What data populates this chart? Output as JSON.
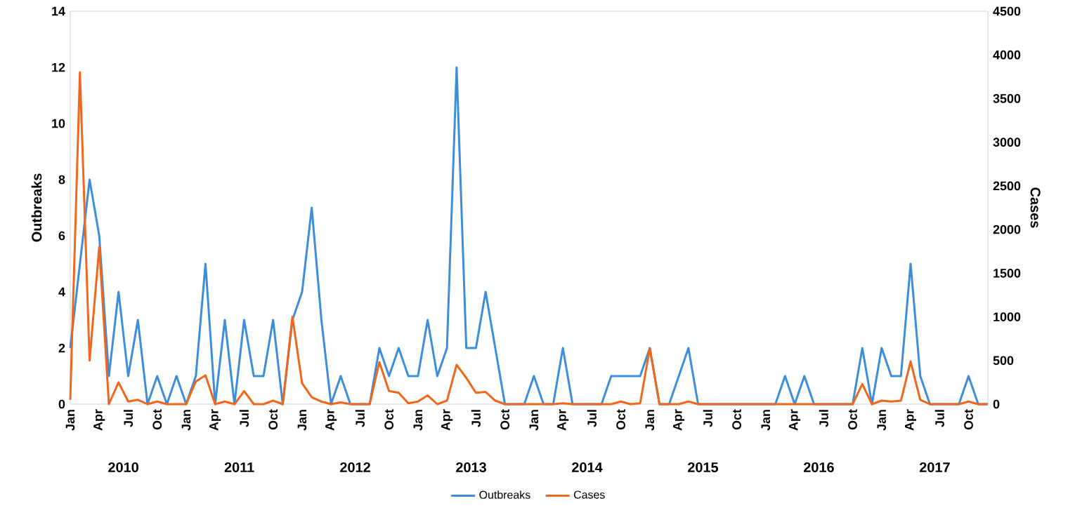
{
  "chart_data": {
    "type": "line",
    "ylabel": "Outbreaks",
    "y2label": "Cases",
    "x": [
      "2010-01",
      "2010-02",
      "2010-03",
      "2010-04",
      "2010-05",
      "2010-06",
      "2010-07",
      "2010-08",
      "2010-09",
      "2010-10",
      "2010-11",
      "2010-12",
      "2011-01",
      "2011-02",
      "2011-03",
      "2011-04",
      "2011-05",
      "2011-06",
      "2011-07",
      "2011-08",
      "2011-09",
      "2011-10",
      "2011-11",
      "2011-12",
      "2012-01",
      "2012-02",
      "2012-03",
      "2012-04",
      "2012-05",
      "2012-06",
      "2012-07",
      "2012-08",
      "2012-09",
      "2012-10",
      "2012-11",
      "2012-12",
      "2013-01",
      "2013-02",
      "2013-03",
      "2013-04",
      "2013-05",
      "2013-06",
      "2013-07",
      "2013-08",
      "2013-09",
      "2013-10",
      "2013-11",
      "2013-12",
      "2014-01",
      "2014-02",
      "2014-03",
      "2014-04",
      "2014-05",
      "2014-06",
      "2014-07",
      "2014-08",
      "2014-09",
      "2014-10",
      "2014-11",
      "2014-12",
      "2015-01",
      "2015-02",
      "2015-03",
      "2015-04",
      "2015-05",
      "2015-06",
      "2015-07",
      "2015-08",
      "2015-09",
      "2015-10",
      "2015-11",
      "2015-12",
      "2016-01",
      "2016-02",
      "2016-03",
      "2016-04",
      "2016-05",
      "2016-06",
      "2016-07",
      "2016-08",
      "2016-09",
      "2016-10",
      "2016-11",
      "2016-12",
      "2017-01",
      "2017-02",
      "2017-03",
      "2017-04",
      "2017-05",
      "2017-06",
      "2017-07",
      "2017-08",
      "2017-09",
      "2017-10",
      "2017-11",
      "2017-12"
    ],
    "xlim": [
      "2010-01",
      "2017-12"
    ],
    "xticks": [
      {
        "value": "2010-01",
        "label": "Jan"
      },
      {
        "value": "2010-04",
        "label": "Apr"
      },
      {
        "value": "2010-07",
        "label": "Jul"
      },
      {
        "value": "2010-10",
        "label": "Oct"
      },
      {
        "value": "2011-01",
        "label": "Jan"
      },
      {
        "value": "2011-04",
        "label": "Apr"
      },
      {
        "value": "2011-07",
        "label": "Jul"
      },
      {
        "value": "2011-10",
        "label": "Oct"
      },
      {
        "value": "2012-01",
        "label": "Jan"
      },
      {
        "value": "2012-04",
        "label": "Apr"
      },
      {
        "value": "2012-07",
        "label": "Jul"
      },
      {
        "value": "2012-10",
        "label": "Oct"
      },
      {
        "value": "2013-01",
        "label": "Jan"
      },
      {
        "value": "2013-04",
        "label": "Apr"
      },
      {
        "value": "2013-07",
        "label": "Jul"
      },
      {
        "value": "2013-10",
        "label": "Oct"
      },
      {
        "value": "2014-01",
        "label": "Jan"
      },
      {
        "value": "2014-04",
        "label": "Apr"
      },
      {
        "value": "2014-07",
        "label": "Jul"
      },
      {
        "value": "2014-10",
        "label": "Oct"
      },
      {
        "value": "2015-01",
        "label": "Jan"
      },
      {
        "value": "2015-04",
        "label": "Apr"
      },
      {
        "value": "2015-07",
        "label": "Jul"
      },
      {
        "value": "2015-10",
        "label": "Oct"
      },
      {
        "value": "2016-01",
        "label": "Jan"
      },
      {
        "value": "2016-04",
        "label": "Apr"
      },
      {
        "value": "2016-07",
        "label": "Jul"
      },
      {
        "value": "2016-10",
        "label": "Oct"
      },
      {
        "value": "2017-01",
        "label": "Jan"
      },
      {
        "value": "2017-04",
        "label": "Apr"
      },
      {
        "value": "2017-07",
        "label": "Jul"
      },
      {
        "value": "2017-10",
        "label": "Oct"
      }
    ],
    "ylim": [
      0,
      14
    ],
    "yticks": [
      0,
      2,
      4,
      6,
      8,
      10,
      12,
      14
    ],
    "y2lim": [
      0,
      4500
    ],
    "y2ticks": [
      0,
      500,
      1000,
      1500,
      2000,
      2500,
      3000,
      3500,
      4000,
      4500
    ],
    "series": [
      {
        "name": "Outbreaks",
        "color": "#3c8dda",
        "values": [
          2,
          5,
          8,
          6,
          1,
          4,
          1,
          3,
          0,
          1,
          0,
          1,
          0,
          1,
          5,
          0,
          3,
          0,
          3,
          1,
          1,
          3,
          0,
          3,
          4,
          7,
          3,
          0,
          1,
          0,
          0,
          0,
          2,
          1,
          2,
          1,
          1,
          3,
          1,
          2,
          12,
          2,
          2,
          4,
          2,
          0,
          0,
          0,
          1,
          0,
          0,
          2,
          0,
          0,
          0,
          0,
          1,
          1,
          1,
          1,
          2,
          0,
          0,
          1,
          2,
          0,
          0,
          0,
          0,
          0,
          0,
          0,
          0,
          0,
          1,
          0,
          1,
          0,
          0,
          0,
          0,
          0,
          2,
          0,
          2,
          1,
          1,
          5,
          1,
          0,
          0,
          0,
          0,
          1,
          0,
          0
        ]
      },
      {
        "name": "Cases",
        "color": "#f0661a",
        "axis": "y2",
        "values": [
          50,
          3800,
          500,
          1800,
          0,
          250,
          30,
          50,
          0,
          30,
          0,
          0,
          0,
          260,
          330,
          0,
          30,
          0,
          150,
          0,
          0,
          40,
          0,
          1000,
          240,
          80,
          30,
          0,
          20,
          0,
          0,
          0,
          480,
          150,
          130,
          10,
          30,
          100,
          0,
          40,
          450,
          300,
          130,
          140,
          40,
          0,
          0,
          0,
          0,
          0,
          0,
          10,
          0,
          0,
          0,
          0,
          0,
          30,
          0,
          10,
          640,
          0,
          0,
          0,
          30,
          0,
          0,
          0,
          0,
          0,
          0,
          0,
          0,
          0,
          0,
          0,
          0,
          0,
          0,
          0,
          0,
          0,
          230,
          0,
          40,
          30,
          40,
          490,
          50,
          0,
          0,
          0,
          0,
          30,
          0,
          0
        ]
      }
    ],
    "annotations": [
      "2010",
      "2011",
      "2012",
      "2013",
      "2014",
      "2015",
      "2016",
      "2017"
    ],
    "legend": "bottom"
  }
}
